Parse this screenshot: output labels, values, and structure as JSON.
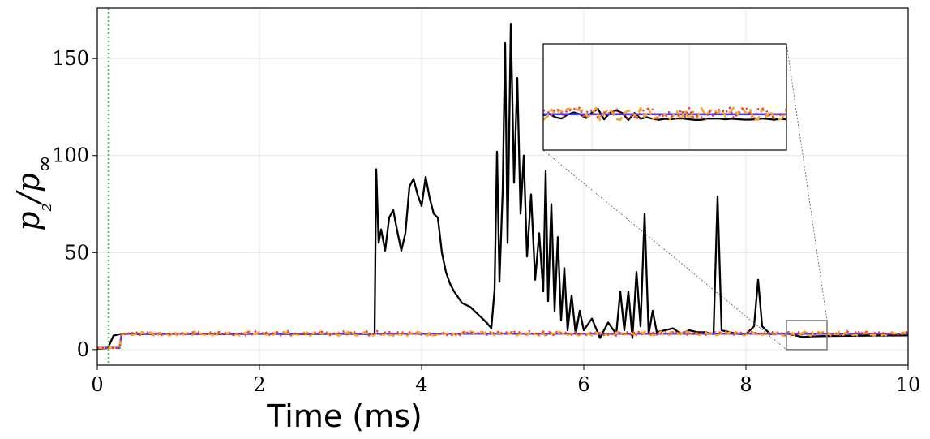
{
  "chart_data": {
    "type": "line",
    "title": "",
    "xlabel": "Time (ms)",
    "ylabel": "p₂/p∞",
    "xlim": [
      0,
      10
    ],
    "ylim": [
      -8,
      176
    ],
    "x_ticks": [
      "0",
      "2",
      "4",
      "6",
      "8",
      "10"
    ],
    "x_tick_values": [
      0,
      2,
      4,
      6,
      8,
      10
    ],
    "y_ticks": [
      "0",
      "50",
      "100",
      "150"
    ],
    "y_tick_values": [
      0,
      50,
      100,
      150
    ],
    "grid": true,
    "legend": "none",
    "vertical_marker": {
      "x": 0.14,
      "color": "#5cb85c",
      "style": "dotted"
    },
    "series": [
      {
        "color": "#000000",
        "style": "solid",
        "points": [
          [
            0,
            0.5
          ],
          [
            0.13,
            0.8
          ],
          [
            0.2,
            7.2
          ],
          [
            0.3,
            8.2
          ],
          [
            0.5,
            8
          ],
          [
            1,
            8.1
          ],
          [
            1.5,
            8
          ],
          [
            2,
            8.1
          ],
          [
            2.5,
            8
          ],
          [
            3,
            8.1
          ],
          [
            3.42,
            8
          ],
          [
            3.44,
            93
          ],
          [
            3.47,
            55
          ],
          [
            3.5,
            62
          ],
          [
            3.55,
            51
          ],
          [
            3.6,
            68
          ],
          [
            3.65,
            72
          ],
          [
            3.7,
            61
          ],
          [
            3.75,
            51
          ],
          [
            3.8,
            60
          ],
          [
            3.85,
            84
          ],
          [
            3.9,
            88
          ],
          [
            3.95,
            80
          ],
          [
            4.0,
            74
          ],
          [
            4.05,
            89
          ],
          [
            4.1,
            78
          ],
          [
            4.15,
            70
          ],
          [
            4.2,
            68
          ],
          [
            4.25,
            50
          ],
          [
            4.3,
            40
          ],
          [
            4.35,
            34
          ],
          [
            4.4,
            30
          ],
          [
            4.5,
            24
          ],
          [
            4.6,
            22
          ],
          [
            4.7,
            18
          ],
          [
            4.8,
            14
          ],
          [
            4.86,
            11
          ],
          [
            4.9,
            31
          ],
          [
            4.93,
            102
          ],
          [
            4.96,
            35
          ],
          [
            5.0,
            82
          ],
          [
            5.03,
            158
          ],
          [
            5.06,
            55
          ],
          [
            5.1,
            168
          ],
          [
            5.14,
            86
          ],
          [
            5.18,
            140
          ],
          [
            5.22,
            70
          ],
          [
            5.26,
            100
          ],
          [
            5.3,
            48
          ],
          [
            5.35,
            80
          ],
          [
            5.4,
            36
          ],
          [
            5.45,
            60
          ],
          [
            5.5,
            30
          ],
          [
            5.53,
            92
          ],
          [
            5.56,
            25
          ],
          [
            5.6,
            75
          ],
          [
            5.64,
            20
          ],
          [
            5.68,
            58
          ],
          [
            5.72,
            15
          ],
          [
            5.76,
            42
          ],
          [
            5.8,
            10
          ],
          [
            5.85,
            28
          ],
          [
            5.9,
            8
          ],
          [
            5.95,
            20
          ],
          [
            6.0,
            10
          ],
          [
            6.1,
            16
          ],
          [
            6.2,
            6
          ],
          [
            6.3,
            14
          ],
          [
            6.4,
            8
          ],
          [
            6.45,
            30
          ],
          [
            6.5,
            10
          ],
          [
            6.55,
            30
          ],
          [
            6.6,
            6
          ],
          [
            6.65,
            40
          ],
          [
            6.7,
            12
          ],
          [
            6.75,
            70
          ],
          [
            6.8,
            8
          ],
          [
            6.85,
            20
          ],
          [
            6.9,
            9
          ],
          [
            7.0,
            10
          ],
          [
            7.1,
            11
          ],
          [
            7.2,
            8
          ],
          [
            7.3,
            10
          ],
          [
            7.4,
            9
          ],
          [
            7.5,
            9
          ],
          [
            7.6,
            8
          ],
          [
            7.65,
            79
          ],
          [
            7.7,
            10
          ],
          [
            7.8,
            9
          ],
          [
            7.9,
            8
          ],
          [
            8.0,
            8
          ],
          [
            8.1,
            12
          ],
          [
            8.15,
            36
          ],
          [
            8.2,
            12
          ],
          [
            8.3,
            8
          ],
          [
            8.5,
            8.3
          ],
          [
            8.6,
            7.4
          ],
          [
            8.7,
            6.5
          ],
          [
            8.8,
            6.8
          ],
          [
            9.0,
            7
          ],
          [
            9.5,
            7.2
          ],
          [
            10,
            7.3
          ]
        ]
      },
      {
        "color": "#3a3aff",
        "style": "solid",
        "points": [
          [
            0,
            0.8
          ],
          [
            0.3,
            1
          ],
          [
            0.36,
            8.2
          ],
          [
            1,
            8.2
          ],
          [
            2,
            8.2
          ],
          [
            3,
            8.2
          ],
          [
            4,
            8.2
          ],
          [
            5,
            8.2
          ],
          [
            6,
            8.2
          ],
          [
            7,
            8.2
          ],
          [
            8,
            8.2
          ],
          [
            9,
            8.2
          ],
          [
            10,
            8.2
          ]
        ]
      },
      {
        "color": "#f5a623",
        "style": "dashed",
        "points": [
          [
            0,
            0.8
          ],
          [
            0.3,
            1
          ],
          [
            0.36,
            8.3
          ],
          [
            1,
            8.3
          ],
          [
            2,
            8.3
          ],
          [
            3,
            8.3
          ],
          [
            4,
            8.3
          ],
          [
            5,
            8.3
          ],
          [
            6,
            8.3
          ],
          [
            7,
            8.3
          ],
          [
            8,
            8.3
          ],
          [
            9,
            8.3
          ],
          [
            10,
            8.3
          ]
        ]
      },
      {
        "color": "#ef3a3a",
        "style": "dotted",
        "points": [
          [
            0,
            0.8
          ],
          [
            0.3,
            1
          ],
          [
            0.36,
            8.4
          ],
          [
            1,
            8.4
          ],
          [
            2,
            8.4
          ],
          [
            3,
            8.4
          ],
          [
            4,
            8.4
          ],
          [
            5,
            8.4
          ],
          [
            6,
            8.4
          ],
          [
            7,
            8.4
          ],
          [
            8,
            8.4
          ],
          [
            9,
            8.4
          ],
          [
            10,
            8.4
          ]
        ]
      }
    ],
    "inset": {
      "xlim": [
        8.5,
        9.0
      ],
      "ylim": [
        0,
        15
      ]
    }
  }
}
